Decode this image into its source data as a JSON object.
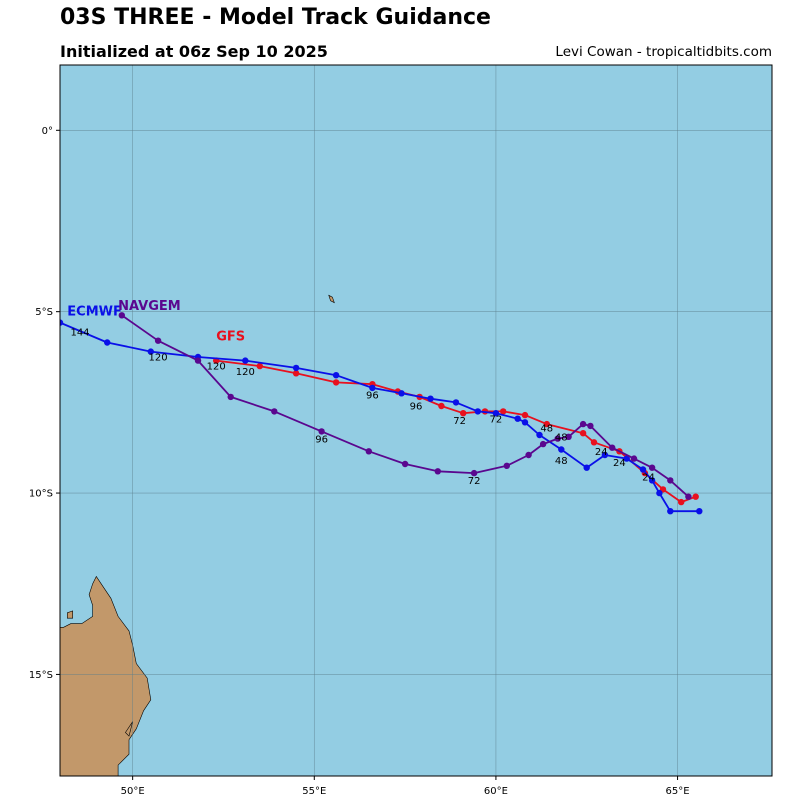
{
  "header": {
    "title": "03S THREE - Model Track Guidance",
    "subtitle": "Initialized at 06z Sep 10 2025",
    "credit": "Levi Cowan - tropicaltidbits.com"
  },
  "colors": {
    "ocean": "#93cde3",
    "land": "#c2986a",
    "grid": "#5b7f8c",
    "frame": "#000000"
  },
  "map": {
    "lon_range": [
      48,
      67.6
    ],
    "lat_range": [
      -17.8,
      1.8
    ],
    "lon_ticks": [
      {
        "value": 50,
        "label": "50°E"
      },
      {
        "value": 55,
        "label": "55°E"
      },
      {
        "value": 60,
        "label": "60°E"
      },
      {
        "value": 65,
        "label": "65°E"
      }
    ],
    "lat_ticks": [
      {
        "value": 0,
        "label": "0°"
      },
      {
        "value": -5,
        "label": "5°S"
      },
      {
        "value": -10,
        "label": "10°S"
      },
      {
        "value": -15,
        "label": "15°S"
      }
    ],
    "land": {
      "madagascar": [
        [
          49.6,
          -17.8
        ],
        [
          49.6,
          -17.5
        ],
        [
          49.9,
          -17.2
        ],
        [
          49.9,
          -16.8
        ],
        [
          50.1,
          -16.5
        ],
        [
          50.3,
          -16.0
        ],
        [
          50.5,
          -15.7
        ],
        [
          50.4,
          -15.1
        ],
        [
          50.1,
          -14.7
        ],
        [
          50.0,
          -14.2
        ],
        [
          49.9,
          -13.8
        ],
        [
          49.6,
          -13.4
        ],
        [
          49.4,
          -12.9
        ],
        [
          49.2,
          -12.6
        ],
        [
          49.0,
          -12.3
        ],
        [
          48.9,
          -12.5
        ],
        [
          48.8,
          -12.8
        ],
        [
          48.9,
          -13.1
        ],
        [
          48.9,
          -13.4
        ],
        [
          48.6,
          -13.6
        ],
        [
          48.3,
          -13.6
        ],
        [
          48.1,
          -13.7
        ],
        [
          48.0,
          -13.7
        ],
        [
          48.0,
          -17.8
        ]
      ],
      "islands": [
        [
          [
            48.2,
            -13.3
          ],
          [
            48.35,
            -13.25
          ],
          [
            48.35,
            -13.45
          ],
          [
            48.2,
            -13.45
          ]
        ],
        [
          [
            55.4,
            -4.55
          ],
          [
            55.5,
            -4.6
          ],
          [
            55.55,
            -4.75
          ],
          [
            55.45,
            -4.7
          ]
        ],
        [
          [
            49.8,
            -16.6
          ],
          [
            50.0,
            -16.3
          ],
          [
            49.9,
            -16.7
          ]
        ]
      ]
    }
  },
  "tracks": [
    {
      "name": "GFS",
      "color": "#e8101e",
      "label_pos": [
        52.3,
        -5.8
      ],
      "points": [
        [
          65.5,
          -10.1
        ],
        [
          65.1,
          -10.25
        ],
        [
          64.6,
          -9.9
        ],
        [
          64.1,
          -9.45
        ],
        [
          63.4,
          -8.85
        ],
        [
          62.7,
          -8.6
        ],
        [
          62.4,
          -8.35
        ],
        [
          61.4,
          -8.1
        ],
        [
          60.8,
          -7.85
        ],
        [
          60.2,
          -7.75
        ],
        [
          59.7,
          -7.75
        ],
        [
          59.1,
          -7.8
        ],
        [
          58.5,
          -7.6
        ],
        [
          57.9,
          -7.35
        ],
        [
          57.3,
          -7.2
        ],
        [
          56.6,
          -7.0
        ],
        [
          55.6,
          -6.95
        ],
        [
          54.5,
          -6.7
        ],
        [
          53.5,
          -6.5
        ],
        [
          52.3,
          -6.35
        ]
      ],
      "labels": [
        {
          "text": "24",
          "lon": 64.2,
          "lat": -9.65
        },
        {
          "text": "48",
          "lon": 61.8,
          "lat": -8.55
        },
        {
          "text": "72",
          "lon": 60.0,
          "lat": -8.05
        },
        {
          "text": "96",
          "lon": 57.8,
          "lat": -7.7
        },
        {
          "text": "120",
          "lon": 53.1,
          "lat": -6.75
        }
      ]
    },
    {
      "name": "ECMWF",
      "color": "#0a10e8",
      "label_pos": [
        48.2,
        -5.1
      ],
      "points": [
        [
          65.6,
          -10.5
        ],
        [
          64.8,
          -10.5
        ],
        [
          64.5,
          -10.0
        ],
        [
          64.3,
          -9.65
        ],
        [
          64.05,
          -9.35
        ],
        [
          63.6,
          -9.05
        ],
        [
          63.0,
          -8.95
        ],
        [
          62.5,
          -9.3
        ],
        [
          61.8,
          -8.8
        ],
        [
          61.2,
          -8.4
        ],
        [
          60.8,
          -8.05
        ],
        [
          60.6,
          -7.95
        ],
        [
          60.0,
          -7.8
        ],
        [
          59.5,
          -7.75
        ],
        [
          58.9,
          -7.5
        ],
        [
          58.2,
          -7.4
        ],
        [
          57.4,
          -7.25
        ],
        [
          56.6,
          -7.1
        ],
        [
          55.6,
          -6.75
        ],
        [
          54.5,
          -6.55
        ],
        [
          53.1,
          -6.35
        ],
        [
          51.8,
          -6.25
        ],
        [
          50.5,
          -6.1
        ],
        [
          49.3,
          -5.85
        ],
        [
          48.0,
          -5.3
        ]
      ],
      "labels": [
        {
          "text": "24",
          "lon": 63.4,
          "lat": -9.25
        },
        {
          "text": "48",
          "lon": 61.8,
          "lat": -9.2
        },
        {
          "text": "72",
          "lon": 59.0,
          "lat": -8.1
        },
        {
          "text": "96",
          "lon": 56.6,
          "lat": -7.4
        },
        {
          "text": "120",
          "lon": 52.3,
          "lat": -6.6
        },
        {
          "text": "144",
          "lon": 48.55,
          "lat": -5.65
        }
      ]
    },
    {
      "name": "NAVGEM",
      "color": "#5a078f",
      "label_pos": [
        49.6,
        -4.95
      ],
      "points": [
        [
          65.3,
          -10.1
        ],
        [
          64.8,
          -9.65
        ],
        [
          64.3,
          -9.3
        ],
        [
          63.8,
          -9.05
        ],
        [
          63.2,
          -8.75
        ],
        [
          62.6,
          -8.15
        ],
        [
          62.4,
          -8.1
        ],
        [
          62.0,
          -8.45
        ],
        [
          61.7,
          -8.5
        ],
        [
          61.3,
          -8.65
        ],
        [
          60.9,
          -8.95
        ],
        [
          60.3,
          -9.25
        ],
        [
          59.4,
          -9.45
        ],
        [
          58.4,
          -9.4
        ],
        [
          57.5,
          -9.2
        ],
        [
          56.5,
          -8.85
        ],
        [
          55.2,
          -8.3
        ],
        [
          53.9,
          -7.75
        ],
        [
          52.7,
          -7.35
        ],
        [
          51.8,
          -6.35
        ],
        [
          50.7,
          -5.8
        ],
        [
          49.7,
          -5.1
        ]
      ],
      "labels": [
        {
          "text": "24",
          "lon": 62.9,
          "lat": -8.95
        },
        {
          "text": "48",
          "lon": 61.4,
          "lat": -8.3
        },
        {
          "text": "72",
          "lon": 59.4,
          "lat": -9.75
        },
        {
          "text": "96",
          "lon": 55.2,
          "lat": -8.6
        },
        {
          "text": "120",
          "lon": 50.7,
          "lat": -6.35
        }
      ]
    }
  ]
}
